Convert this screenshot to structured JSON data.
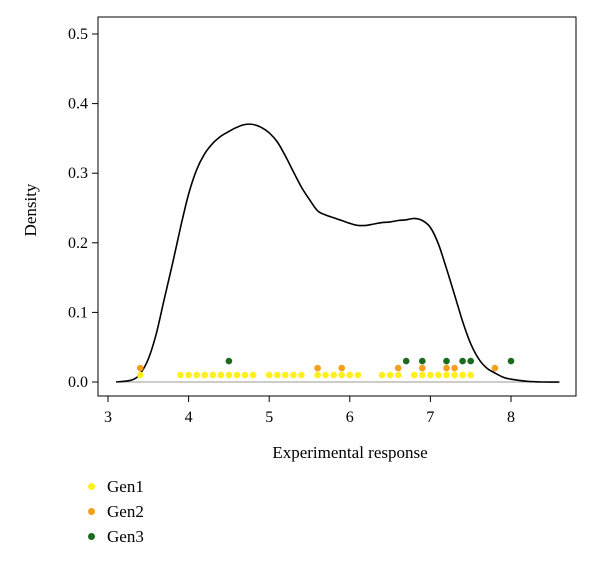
{
  "chart_data": {
    "type": "scatter",
    "xlabel": "Experimental response",
    "ylabel": "Density",
    "xlim": [
      3,
      8.6
    ],
    "ylim": [
      0,
      0.5
    ],
    "x_ticks": [
      3,
      4,
      5,
      6,
      7,
      8
    ],
    "y_ticks": [
      0.0,
      0.1,
      0.2,
      0.3,
      0.4,
      0.5
    ],
    "x_tick_labels": [
      "3",
      "4",
      "5",
      "6",
      "7",
      "8"
    ],
    "y_tick_labels": [
      "0.0",
      "0.1",
      "0.2",
      "0.3",
      "0.4",
      "0.5"
    ],
    "density_curve": {
      "x": [
        3.1,
        3.3,
        3.4,
        3.5,
        3.6,
        3.7,
        3.8,
        3.9,
        4.0,
        4.1,
        4.2,
        4.3,
        4.4,
        4.5,
        4.6,
        4.7,
        4.8,
        4.9,
        5.0,
        5.1,
        5.2,
        5.3,
        5.4,
        5.5,
        5.6,
        5.7,
        5.8,
        5.9,
        6.0,
        6.1,
        6.2,
        6.3,
        6.4,
        6.5,
        6.6,
        6.7,
        6.8,
        6.9,
        7.0,
        7.1,
        7.2,
        7.3,
        7.4,
        7.5,
        7.6,
        7.7,
        7.8,
        7.9,
        8.0,
        8.2,
        8.4,
        8.6
      ],
      "y": [
        0.0,
        0.003,
        0.012,
        0.033,
        0.07,
        0.12,
        0.17,
        0.222,
        0.27,
        0.305,
        0.328,
        0.343,
        0.353,
        0.36,
        0.366,
        0.37,
        0.37,
        0.366,
        0.358,
        0.345,
        0.325,
        0.302,
        0.28,
        0.262,
        0.246,
        0.24,
        0.236,
        0.232,
        0.228,
        0.225,
        0.225,
        0.227,
        0.229,
        0.23,
        0.232,
        0.233,
        0.235,
        0.232,
        0.222,
        0.198,
        0.163,
        0.125,
        0.087,
        0.055,
        0.033,
        0.02,
        0.013,
        0.007,
        0.004,
        0.001,
        0.0,
        0.0
      ]
    },
    "baseline_y": 0.0,
    "series": [
      {
        "name": "Gen1",
        "color": "#ffef1c",
        "x": [
          3.4,
          3.9,
          4.0,
          4.1,
          4.2,
          4.3,
          4.4,
          4.5,
          4.6,
          4.7,
          4.8,
          5.0,
          5.1,
          5.2,
          5.3,
          5.4,
          5.6,
          5.7,
          5.8,
          5.9,
          6.0,
          6.1,
          6.4,
          6.5,
          6.6,
          6.8,
          6.9,
          7.0,
          7.1,
          7.2,
          7.3,
          7.4,
          7.5
        ],
        "y": [
          0.01,
          0.01,
          0.01,
          0.01,
          0.01,
          0.01,
          0.01,
          0.01,
          0.01,
          0.01,
          0.01,
          0.01,
          0.01,
          0.01,
          0.01,
          0.01,
          0.01,
          0.01,
          0.01,
          0.01,
          0.01,
          0.01,
          0.01,
          0.01,
          0.01,
          0.01,
          0.01,
          0.01,
          0.01,
          0.01,
          0.01,
          0.01,
          0.01
        ]
      },
      {
        "name": "Gen2",
        "color": "#f4a01f",
        "x": [
          3.4,
          5.6,
          5.9,
          6.6,
          6.9,
          7.2,
          7.3,
          7.8
        ],
        "y": [
          0.02,
          0.02,
          0.02,
          0.02,
          0.02,
          0.02,
          0.02,
          0.02
        ]
      },
      {
        "name": "Gen3",
        "color": "#1a6b1e",
        "x": [
          4.5,
          6.7,
          6.9,
          7.2,
          7.4,
          7.5,
          8.0
        ],
        "y": [
          0.03,
          0.03,
          0.03,
          0.03,
          0.03,
          0.03,
          0.03
        ]
      }
    ],
    "legend_position": "bottom-left"
  },
  "legend": {
    "items": [
      {
        "label": "Gen1",
        "color": "#ffef1c"
      },
      {
        "label": "Gen2",
        "color": "#f4a01f"
      },
      {
        "label": "Gen3",
        "color": "#1a6b1e"
      }
    ]
  }
}
